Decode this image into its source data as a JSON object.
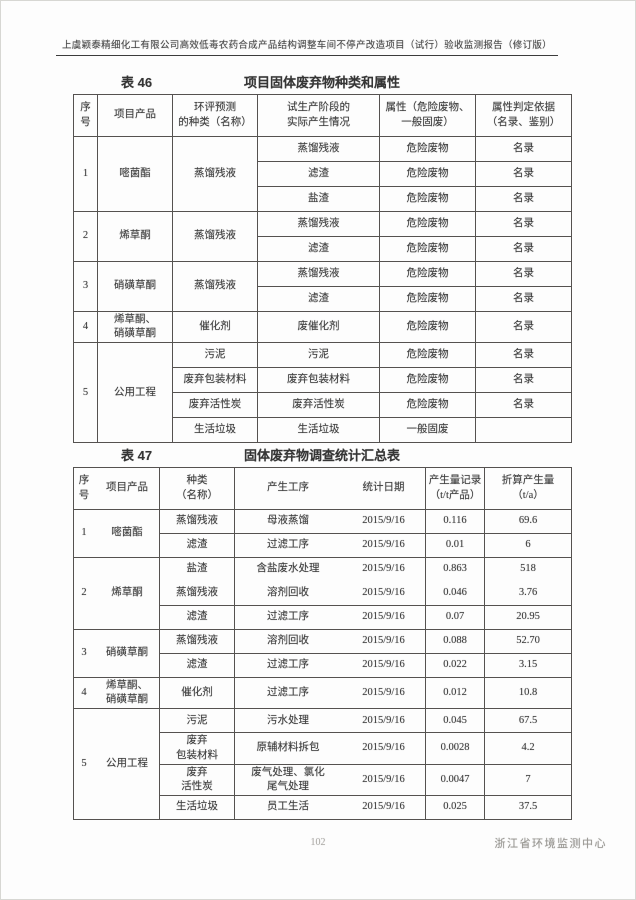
{
  "page": {
    "header_title": "上虞颖泰精细化工有限公司高效低毒农药合成产品结构调整车间不停产改造项目（试行）验收监测报告（修订版）",
    "page_number": "102",
    "footer_org": "浙江省环境监测中心"
  },
  "table46": {
    "label": "表 46",
    "title": "项目固体废弃物种类和属性",
    "headers": {
      "no": "序\n号",
      "product": "项目产品",
      "eia": "环评预测\n的种类（名称）",
      "actual": "试生产阶段的\n实际产生情况",
      "attr": "属性（危险废物、\n一般固废）",
      "basis": "属性判定依据\n（名录、鉴别）"
    },
    "rows": [
      {
        "no": "1",
        "product": "嘧菌酯",
        "eia_shared": "蒸馏残液",
        "subs": [
          {
            "actual": "蒸馏残液",
            "attr": "危险废物",
            "basis": "名录"
          },
          {
            "actual": "滤渣",
            "attr": "危险废物",
            "basis": "名录"
          },
          {
            "actual": "盐渣",
            "attr": "危险废物",
            "basis": "名录"
          }
        ]
      },
      {
        "no": "2",
        "product": "烯草酮",
        "eia_shared": "蒸馏残液",
        "subs": [
          {
            "actual": "蒸馏残液",
            "attr": "危险废物",
            "basis": "名录"
          },
          {
            "actual": "滤渣",
            "attr": "危险废物",
            "basis": "名录"
          }
        ]
      },
      {
        "no": "3",
        "product": "硝磺草酮",
        "eia_shared": "蒸馏残液",
        "subs": [
          {
            "actual": "蒸馏残液",
            "attr": "危险废物",
            "basis": "名录"
          },
          {
            "actual": "滤渣",
            "attr": "危险废物",
            "basis": "名录"
          }
        ]
      },
      {
        "no": "4",
        "product": "烯草酮、\n硝磺草酮",
        "eia_shared": "催化剂",
        "subs": [
          {
            "actual": "废催化剂",
            "attr": "危险废物",
            "basis": "名录"
          }
        ]
      },
      {
        "no": "5",
        "product": "公用工程",
        "subs": [
          {
            "eia": "污泥",
            "actual": "污泥",
            "attr": "危险废物",
            "basis": "名录"
          },
          {
            "eia": "废弃包装材料",
            "actual": "废弃包装材料",
            "attr": "危险废物",
            "basis": "名录"
          },
          {
            "eia": "废弃活性炭",
            "actual": "废弃活性炭",
            "attr": "危险废物",
            "basis": "名录"
          },
          {
            "eia": "生活垃圾",
            "actual": "生活垃圾",
            "attr": "一般固废",
            "basis": ""
          }
        ]
      }
    ]
  },
  "table47": {
    "label": "表 47",
    "title": "固体废弃物调查统计汇总表",
    "headers": {
      "no": "序\n号",
      "product": "项目产品",
      "kind": "种类\n（名称）",
      "process": "产生工序",
      "date": "统计日期",
      "record": "产生量记录\n（t/t产品）",
      "converted": "折算产生量\n（t/a）"
    },
    "rows": [
      {
        "no": "1",
        "product": "嘧菌酯",
        "subs": [
          {
            "kind": "蒸馏残液",
            "process": "母液蒸馏",
            "date": "2015/9/16",
            "record": "0.116",
            "converted": "69.6"
          },
          {
            "kind": "滤渣",
            "process": "过滤工序",
            "date": "2015/9/16",
            "record": "0.01",
            "converted": "6"
          }
        ]
      },
      {
        "no": "2",
        "product": "烯草酮",
        "subs": [
          {
            "kind": "盐渣",
            "process": "含盐废水处理",
            "date": "2015/9/16",
            "record": "0.863",
            "converted": "518"
          },
          {
            "kind": "蒸馏残液",
            "process": "溶剂回收",
            "date": "2015/9/16",
            "record": "0.046",
            "converted": "3.76"
          },
          {
            "kind": "滤渣",
            "process": "过滤工序",
            "date": "2015/9/16",
            "record": "0.07",
            "converted": "20.95"
          }
        ]
      },
      {
        "no": "3",
        "product": "硝磺草酮",
        "subs": [
          {
            "kind": "蒸馏残液",
            "process": "溶剂回收",
            "date": "2015/9/16",
            "record": "0.088",
            "converted": "52.70"
          },
          {
            "kind": "滤渣",
            "process": "过滤工序",
            "date": "2015/9/16",
            "record": "0.022",
            "converted": "3.15"
          }
        ]
      },
      {
        "no": "4",
        "product": "烯草酮、\n硝磺草酮",
        "subs": [
          {
            "kind": "催化剂",
            "process": "过滤工序",
            "date": "2015/9/16",
            "record": "0.012",
            "converted": "10.8"
          }
        ]
      },
      {
        "no": "5",
        "product": "公用工程",
        "subs": [
          {
            "kind": "污泥",
            "process": "污水处理",
            "date": "2015/9/16",
            "record": "0.045",
            "converted": "67.5"
          },
          {
            "kind": "废弃\n包装材料",
            "process": "原辅材料拆包",
            "date": "2015/9/16",
            "record": "0.0028",
            "converted": "4.2"
          },
          {
            "kind": "废弃\n活性炭",
            "process": "废气处理、氯化\n尾气处理",
            "date": "2015/9/16",
            "record": "0.0047",
            "converted": "7"
          },
          {
            "kind": "生活垃圾",
            "process": "员工生活",
            "date": "2015/9/16",
            "record": "0.025",
            "converted": "37.5"
          }
        ]
      }
    ]
  }
}
